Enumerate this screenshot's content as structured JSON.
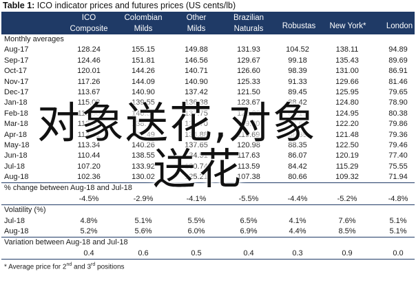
{
  "title": {
    "prefix": "Table 1:",
    "text": "ICO indicator prices and futures prices (US cents/lb)"
  },
  "columns": [
    {
      "l1": "ICO",
      "l2": "Composite"
    },
    {
      "l1": "Colombian",
      "l2": "Milds"
    },
    {
      "l1": "Other",
      "l2": "Milds"
    },
    {
      "l1": "Brazilian",
      "l2": "Naturals"
    },
    {
      "l1": "Robustas",
      "l2": ""
    },
    {
      "l1": "New York*",
      "l2": ""
    },
    {
      "l1": "London",
      "l2": ""
    }
  ],
  "sections": {
    "monthly": "Monthly averages",
    "pct_change": "% change between Aug-18 and Jul-18",
    "volatility": "Volatility (%)",
    "variation": "Variation between Aug-18 and Jul-18"
  },
  "monthly_rows": [
    {
      "label": "Aug-17",
      "values": [
        "128.24",
        "155.15",
        "149.88",
        "131.93",
        "104.52",
        "138.11",
        "94.89"
      ]
    },
    {
      "label": "Sep-17",
      "values": [
        "124.46",
        "151.81",
        "146.56",
        "129.67",
        "99.18",
        "135.43",
        "89.69"
      ]
    },
    {
      "label": "Oct-17",
      "values": [
        "120.01",
        "144.26",
        "140.71",
        "126.60",
        "98.39",
        "131.00",
        "86.91"
      ]
    },
    {
      "label": "Nov-17",
      "values": [
        "117.26",
        "144.09",
        "140.90",
        "125.33",
        "91.33",
        "129.66",
        "81.46"
      ]
    },
    {
      "label": "Dec-17",
      "values": [
        "113.67",
        "140.90",
        "137.42",
        "121.50",
        "89.45",
        "125.95",
        "79.65"
      ]
    },
    {
      "label": "Jan-18",
      "values": [
        "115.08",
        "139.55",
        "136.38",
        "123.67",
        "88.42",
        "124.80",
        "78.90"
      ]
    },
    {
      "label": "Feb-18",
      "values": [
        "115.60",
        "140.56",
        "137.75",
        "122.03",
        "88.19",
        "124.95",
        "80.38"
      ]
    },
    {
      "label": "Mar-18",
      "values": [
        "112.63",
        "138.76",
        "135.70",
        "119.80",
        "87.64",
        "122.20",
        "79.86"
      ]
    },
    {
      "label": "Apr-18",
      "values": [
        "112.71",
        "137.49",
        "134.88",
        "119.69",
        "88.39",
        "121.48",
        "79.36"
      ]
    },
    {
      "label": "May-18",
      "values": [
        "113.34",
        "140.26",
        "137.65",
        "120.98",
        "88.35",
        "122.50",
        "79.46"
      ]
    },
    {
      "label": "Jun-18",
      "values": [
        "110.44",
        "138.55",
        "134.51",
        "117.63",
        "86.07",
        "120.19",
        "77.40"
      ]
    },
    {
      "label": "Jul-18",
      "values": [
        "107.20",
        "133.92",
        "130.74",
        "113.59",
        "84.42",
        "115.29",
        "75.55"
      ]
    },
    {
      "label": "Aug-18",
      "values": [
        "102.36",
        "130.02",
        "125.21",
        "107.38",
        "80.66",
        "109.32",
        "71.94"
      ]
    }
  ],
  "pct_change_row": {
    "label": "",
    "values": [
      "-4.5%",
      "-2.9%",
      "-4.1%",
      "-5.5%",
      "-4.4%",
      "-5.2%",
      "-4.8%"
    ]
  },
  "volatility_rows": [
    {
      "label": "Jul-18",
      "values": [
        "4.8%",
        "5.1%",
        "5.5%",
        "6.5%",
        "4.1%",
        "7.6%",
        "5.1%"
      ]
    },
    {
      "label": "Aug-18",
      "values": [
        "5.2%",
        "5.6%",
        "6.0%",
        "6.9%",
        "4.4%",
        "8.5%",
        "5.1%"
      ]
    }
  ],
  "variation_row": {
    "label": "",
    "values": [
      "0.4",
      "0.6",
      "0.5",
      "0.4",
      "0.3",
      "0.9",
      "0.0"
    ]
  },
  "footnote": {
    "text1": "* Average price for 2",
    "sup1": "nd",
    "text2": " and 3",
    "sup2": "rd",
    "text3": " positions"
  },
  "watermark": {
    "line1": "对象送花,对象",
    "line2": "送花"
  },
  "colors": {
    "header_bg": "#1f3a66",
    "header_text": "#ffffff"
  }
}
